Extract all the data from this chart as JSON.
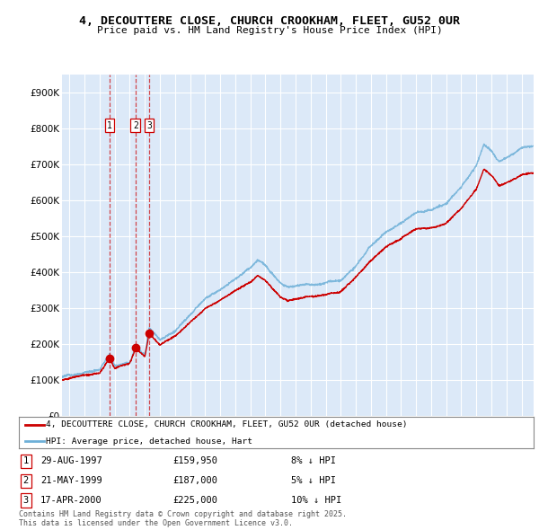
{
  "title_line1": "4, DECOUTTERE CLOSE, CHURCH CROOKHAM, FLEET, GU52 0UR",
  "title_line2": "Price paid vs. HM Land Registry's House Price Index (HPI)",
  "legend_label_red": "4, DECOUTTERE CLOSE, CHURCH CROOKHAM, FLEET, GU52 0UR (detached house)",
  "legend_label_blue": "HPI: Average price, detached house, Hart",
  "footer_line1": "Contains HM Land Registry data © Crown copyright and database right 2025.",
  "footer_line2": "This data is licensed under the Open Government Licence v3.0.",
  "transactions": [
    {
      "num": 1,
      "date": "29-AUG-1997",
      "price": 159950,
      "rel": "8% ↓ HPI",
      "year": 1997.66
    },
    {
      "num": 2,
      "date": "21-MAY-1999",
      "price": 187000,
      "rel": "5% ↓ HPI",
      "year": 1999.38
    },
    {
      "num": 3,
      "date": "17-APR-2000",
      "price": 225000,
      "rel": "10% ↓ HPI",
      "year": 2000.29
    }
  ],
  "ylim": [
    0,
    950000
  ],
  "xlim_start": 1994.5,
  "xlim_end": 2025.8,
  "bg_color": "#dce9f8",
  "grid_color": "#ffffff",
  "red_color": "#cc0000",
  "blue_color": "#6eb0d8"
}
